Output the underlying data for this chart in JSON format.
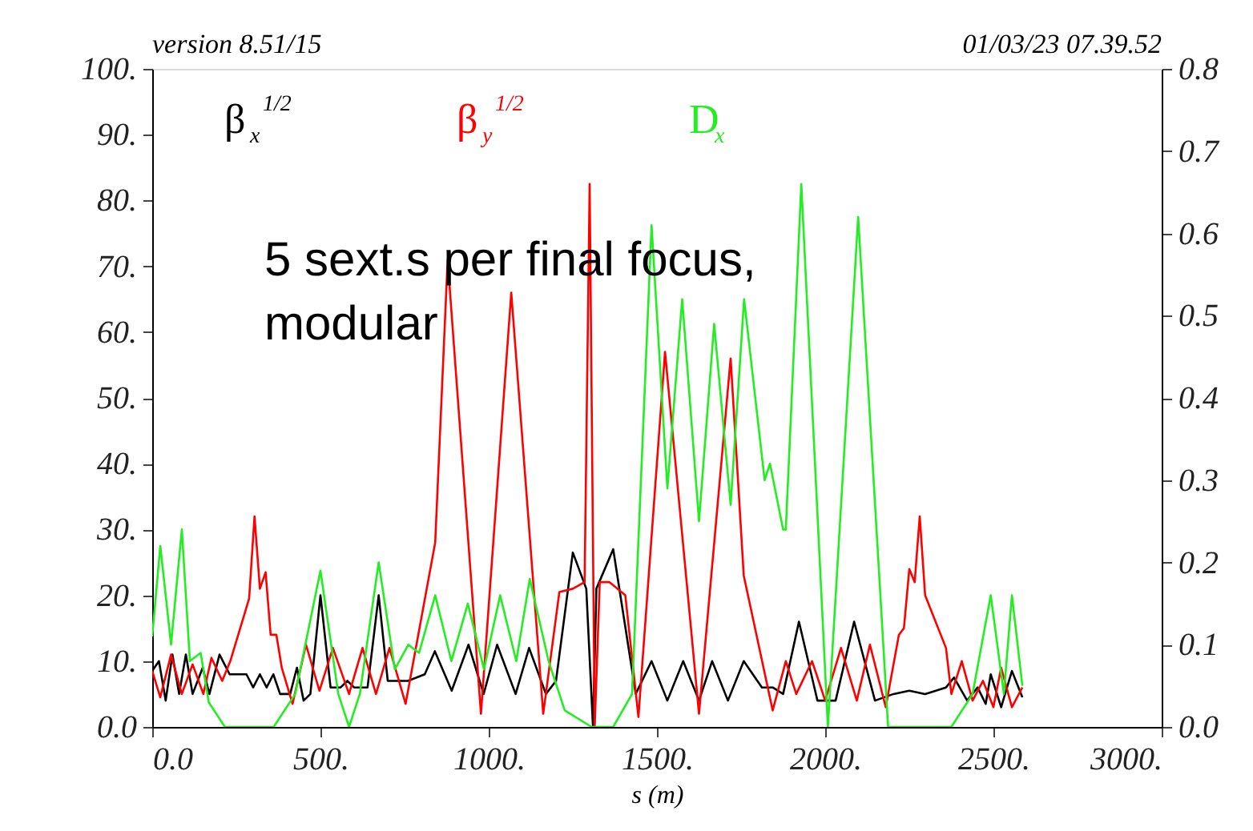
{
  "chart_data": {
    "type": "line",
    "xlabel": "s (m)",
    "annotations": [
      "version 8.51/15",
      "01/03/23  07.39.52",
      "5 sext.s per final focus,\nmodular"
    ],
    "xlim": [
      0,
      3000
    ],
    "xticks": [
      {
        "value": 0,
        "label": "0.0"
      },
      {
        "value": 500,
        "label": "500."
      },
      {
        "value": 1000,
        "label": "1000."
      },
      {
        "value": 1500,
        "label": "1500."
      },
      {
        "value": 2000,
        "label": "2000."
      },
      {
        "value": 2500,
        "label": "2500."
      },
      {
        "value": 3000,
        "label": "3000."
      }
    ],
    "ylim": [
      0,
      100
    ],
    "yticks": [
      {
        "value": 0,
        "label": "0.0"
      },
      {
        "value": 10,
        "label": "10."
      },
      {
        "value": 20,
        "label": "20."
      },
      {
        "value": 30,
        "label": "30."
      },
      {
        "value": 40,
        "label": "40."
      },
      {
        "value": 50,
        "label": "50."
      },
      {
        "value": 60,
        "label": "60."
      },
      {
        "value": 70,
        "label": "70."
      },
      {
        "value": 80,
        "label": "80."
      },
      {
        "value": 90,
        "label": "90."
      },
      {
        "value": 100,
        "label": "100."
      }
    ],
    "y2lim": [
      0,
      0.8
    ],
    "y2ticks": [
      {
        "value": 0,
        "label": "0.0"
      },
      0.1,
      0.2,
      0.3,
      0.4,
      0.5,
      0.6,
      0.7,
      0.8
    ],
    "grid": false,
    "legend": "top",
    "line_style": "solid",
    "series": [
      {
        "name": "β$_{x}$$^{1/2}$",
        "color": "#000000",
        "x": [
          0,
          20,
          40,
          60,
          80,
          100,
          120,
          150,
          170,
          200,
          230,
          280,
          300,
          320,
          340,
          360,
          380,
          410,
          430,
          450,
          470,
          500,
          530,
          560,
          580,
          600,
          640,
          673,
          700,
          760,
          810,
          840,
          890,
          940,
          985,
          1025,
          1080,
          1120,
          1170,
          1200,
          1250,
          1290,
          1310,
          1320,
          1370,
          1437,
          1484,
          1531,
          1578,
          1625,
          1664,
          1711,
          1758,
          1812,
          1844,
          1875,
          1922,
          1977,
          2031,
          2086,
          2148,
          2203,
          2250,
          2297,
          2359,
          2383,
          2422,
          2453,
          2477,
          2492,
          2523,
          2555,
          2586
        ],
        "values": [
          8.5,
          10,
          4,
          11,
          5,
          11,
          5,
          9,
          5,
          11,
          8,
          8,
          6,
          8,
          6,
          8,
          5,
          5,
          9,
          4,
          5,
          20,
          6,
          6,
          7,
          6,
          6,
          20,
          7,
          7,
          8,
          11.5,
          5.5,
          12.5,
          5,
          12.5,
          5,
          12,
          5,
          7,
          26.5,
          21,
          0,
          21,
          27,
          5,
          10,
          4,
          10,
          4,
          10,
          4,
          10,
          6,
          6,
          5,
          16,
          4,
          4,
          16,
          4,
          5,
          5.5,
          5,
          6,
          7.5,
          4,
          6,
          3.5,
          8,
          3,
          8.5,
          4.5
        ]
      },
      {
        "name": "β$_{y}$$^{1/2}$",
        "color": "#ff0000",
        "x": [
          0,
          24,
          56,
          88,
          120,
          152,
          176,
          208,
          232,
          288,
          304,
          320,
          337,
          352,
          369,
          385,
          417,
          457,
          497,
          537,
          585,
          625,
          665,
          705,
          753,
          841,
          878,
          977,
          1067,
          1162,
          1210,
          1250,
          1285,
          1300,
          1315,
          1330,
          1359,
          1406,
          1445,
          1524,
          1625,
          1719,
          1758,
          1844,
          1883,
          1914,
          1961,
          2000,
          2047,
          2094,
          2133,
          2180,
          2219,
          2234,
          2250,
          2266,
          2281,
          2297,
          2359,
          2375,
          2406,
          2438,
          2469,
          2500,
          2523,
          2555,
          2586
        ],
        "values": [
          8.5,
          4.5,
          11,
          5,
          9.5,
          5,
          10.5,
          7,
          10,
          19.5,
          32,
          21,
          23.5,
          14,
          14,
          9,
          3.5,
          12.5,
          5.5,
          12,
          5,
          12,
          5,
          12,
          3.5,
          28,
          71,
          2,
          66,
          2,
          20.5,
          21,
          22,
          82.5,
          0,
          22,
          22,
          20,
          1.5,
          57,
          2,
          56,
          23,
          2.5,
          10,
          5,
          10,
          4,
          12,
          4,
          12.5,
          3,
          14,
          15,
          24,
          22,
          32,
          20,
          12,
          5,
          10,
          4,
          7,
          3,
          9,
          3,
          6
        ]
      },
      {
        "name": "D$_{x}$",
        "color": "#22ee22",
        "axis": "y2",
        "x": [
          0,
          24,
          56,
          88,
          112,
          144,
          168,
          216,
          361,
          425,
          500,
          553,
          585,
          617,
          673,
          721,
          761,
          793,
          841,
          889,
          938,
          986,
          1034,
          1082,
          1122,
          1178,
          1226,
          1306,
          1370,
          1426,
          1484,
          1531,
          1575,
          1625,
          1670,
          1719,
          1759,
          1820,
          1836,
          1875,
          1883,
          1929,
          2008,
          2098,
          2187,
          2375,
          2438,
          2492,
          2531,
          2555,
          2586
        ],
        "values": [
          0.11,
          0.22,
          0.1,
          0.24,
          0.08,
          0.09,
          0.03,
          0,
          0,
          0.04,
          0.19,
          0.04,
          0,
          0.04,
          0.2,
          0.07,
          0.1,
          0.09,
          0.16,
          0.08,
          0.15,
          0.07,
          0.16,
          0.08,
          0.18,
          0.08,
          0.02,
          0,
          0,
          0.04,
          0.61,
          0.29,
          0.52,
          0.25,
          0.49,
          0.27,
          0.52,
          0.3,
          0.32,
          0.24,
          0.24,
          0.66,
          0,
          0.62,
          0,
          0,
          0.04,
          0.16,
          0.04,
          0.16,
          0.05
        ]
      }
    ]
  }
}
